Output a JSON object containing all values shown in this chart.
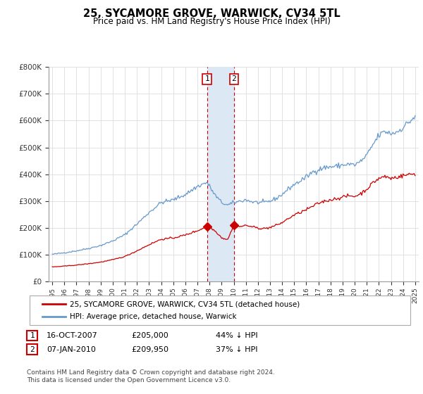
{
  "title": "25, SYCAMORE GROVE, WARWICK, CV34 5TL",
  "subtitle": "Price paid vs. HM Land Registry's House Price Index (HPI)",
  "background_color": "#ffffff",
  "grid_color": "#dddddd",
  "ylim": [
    0,
    800000
  ],
  "yticks": [
    0,
    100000,
    200000,
    300000,
    400000,
    500000,
    600000,
    700000,
    800000
  ],
  "ytick_labels": [
    "£0",
    "£100K",
    "£200K",
    "£300K",
    "£400K",
    "£500K",
    "£600K",
    "£700K",
    "£800K"
  ],
  "legend_label_red": "25, SYCAMORE GROVE, WARWICK, CV34 5TL (detached house)",
  "legend_label_blue": "HPI: Average price, detached house, Warwick",
  "transaction1_date": "16-OCT-2007",
  "transaction1_price": "£205,000",
  "transaction1_pct": "44% ↓ HPI",
  "transaction2_date": "07-JAN-2010",
  "transaction2_price": "£209,950",
  "transaction2_pct": "37% ↓ HPI",
  "footnote": "Contains HM Land Registry data © Crown copyright and database right 2024.\nThis data is licensed under the Open Government Licence v3.0.",
  "red_line_color": "#cc0000",
  "blue_line_color": "#6699cc",
  "highlight_color": "#dde8f5",
  "transaction1_x": 2007.79,
  "transaction2_x": 2010.02,
  "transaction1_y": 205000,
  "transaction2_y": 209950,
  "xlim_left": 1994.7,
  "xlim_right": 2025.3
}
